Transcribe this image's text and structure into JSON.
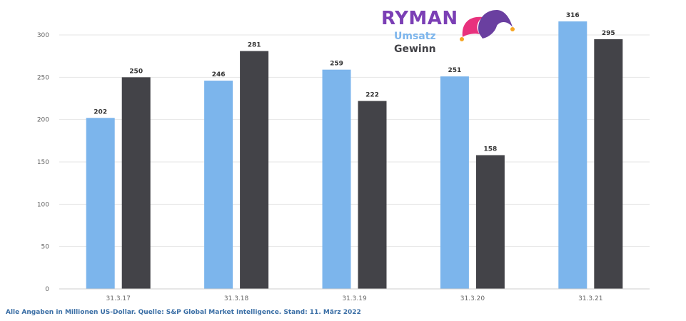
{
  "brand": {
    "name": "RYMAN",
    "logo_icon": "jester-hat-icon"
  },
  "footer": {
    "note": "Alle Angaben in Millionen US-Dollar. Quelle:  S&P Global Market Intelligence. Stand: 11. März 2022"
  },
  "colors": {
    "umsatz": "#7cb5ec",
    "gewinn": "#434348",
    "brand": "#7b3fb5",
    "footer": "#3a6ea5",
    "hat_pink": "#e8317d",
    "hat_purple": "#6a3fa0",
    "hat_bells": "#f6a623"
  },
  "chart_data": {
    "type": "bar",
    "categories": [
      "31.3.17",
      "31.3.18",
      "31.3.19",
      "31.3.20",
      "31.3.21"
    ],
    "series": [
      {
        "name": "Umsatz",
        "values": [
          202,
          246,
          259,
          251,
          316
        ]
      },
      {
        "name": "Gewinn",
        "values": [
          250,
          281,
          222,
          158,
          295
        ]
      }
    ],
    "y_ticks": [
      0,
      50,
      100,
      150,
      200,
      250,
      300
    ],
    "ylim": [
      0,
      300
    ],
    "grid": true,
    "legend_position": "top-center"
  }
}
